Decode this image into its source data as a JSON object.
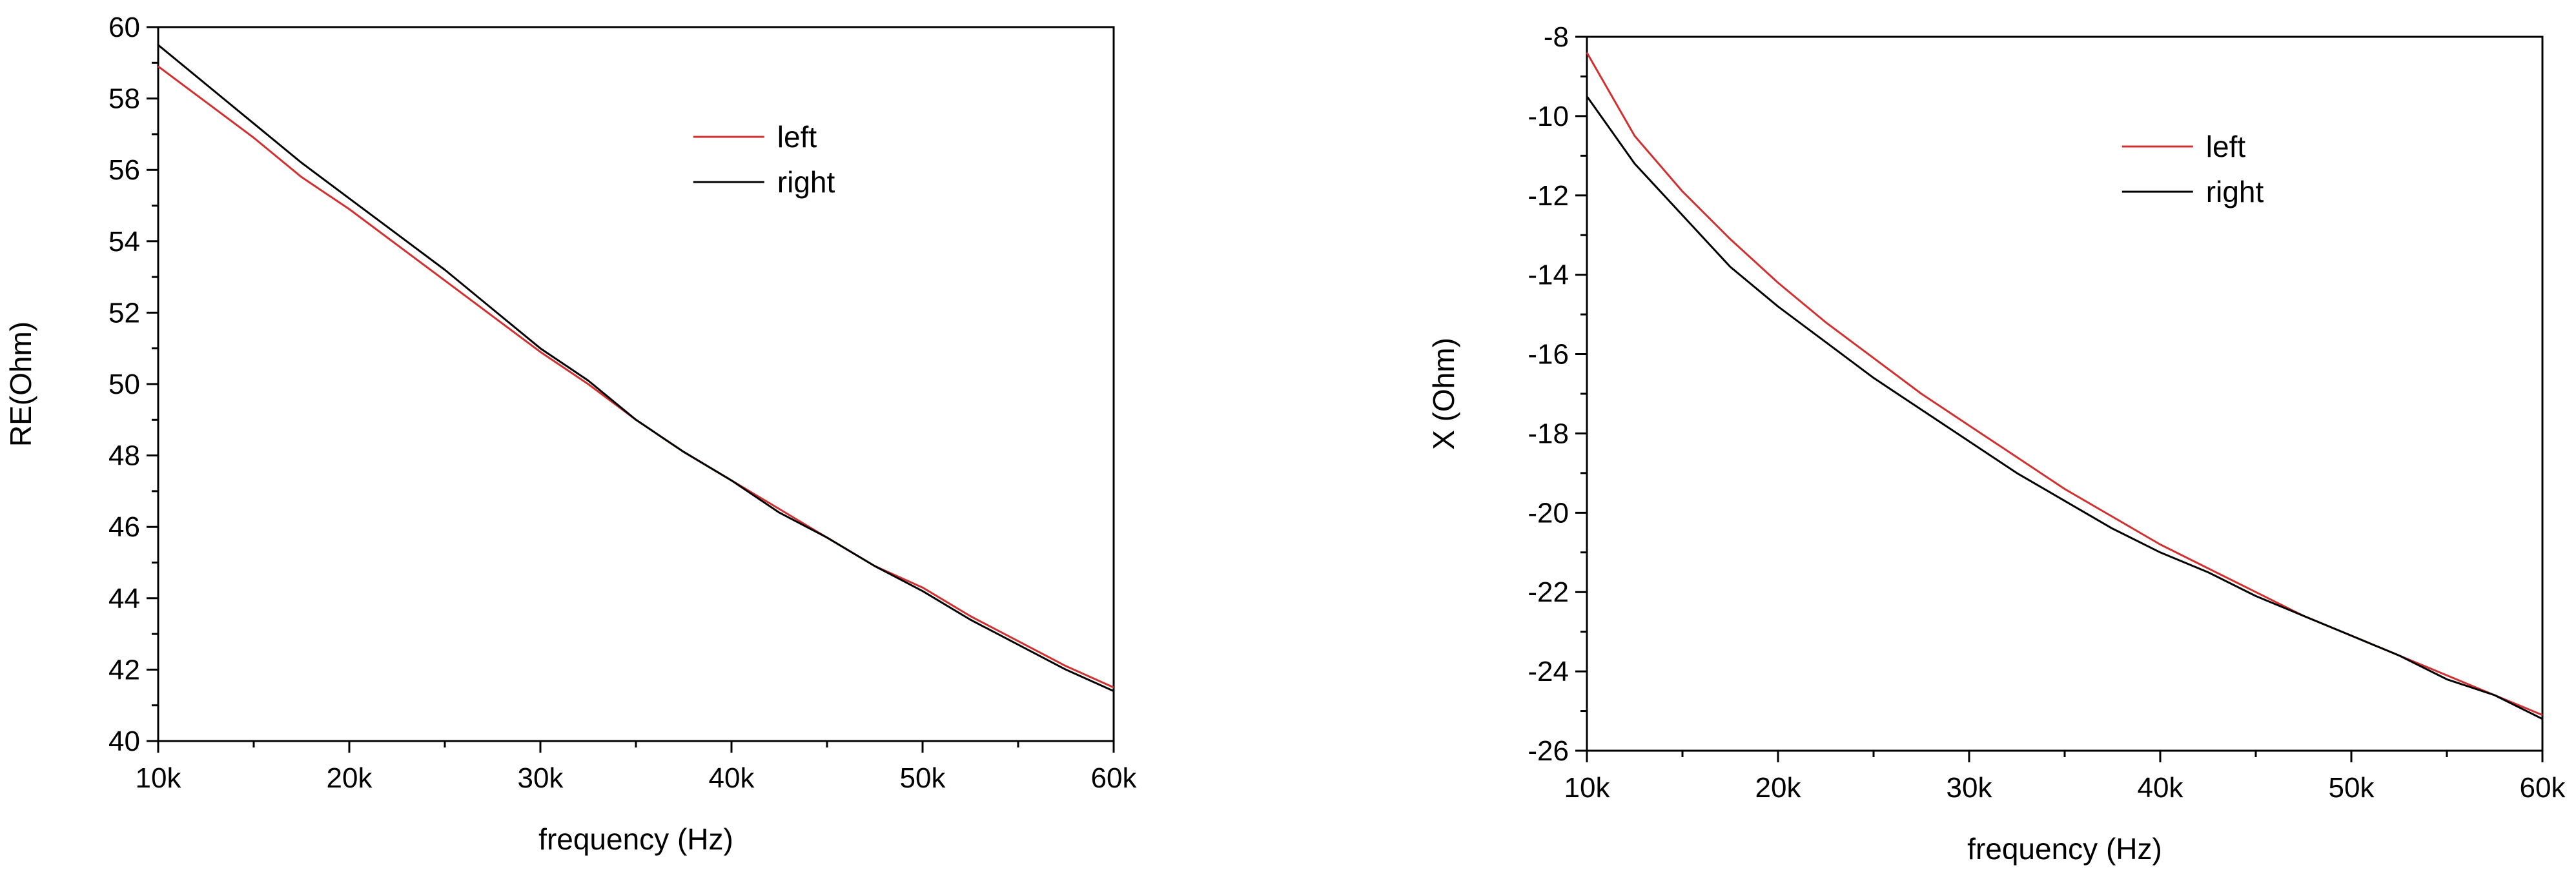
{
  "colors": {
    "left": "#d03030",
    "right": "#000000",
    "axis": "#000000"
  },
  "chart_data": [
    {
      "type": "line",
      "title": "",
      "xlabel": "frequency (Hz)",
      "ylabel": "RE(Ohm)",
      "xlim": [
        10000,
        60000
      ],
      "ylim": [
        40,
        60
      ],
      "x_ticks": [
        10000,
        20000,
        30000,
        40000,
        50000,
        60000
      ],
      "x_tick_labels": [
        "10k",
        "20k",
        "30k",
        "40k",
        "50k",
        "60k"
      ],
      "y_ticks": [
        40,
        42,
        44,
        46,
        48,
        50,
        52,
        54,
        56,
        58,
        60
      ],
      "y_tick_labels": [
        "40",
        "42",
        "44",
        "46",
        "48",
        "50",
        "52",
        "54",
        "56",
        "58",
        "60"
      ],
      "grid": false,
      "legend": "top-right",
      "x": [
        10000,
        12500,
        15000,
        17500,
        20000,
        22500,
        25000,
        27500,
        30000,
        32500,
        35000,
        37500,
        40000,
        42500,
        45000,
        47500,
        50000,
        52500,
        55000,
        57500,
        60000
      ],
      "series": [
        {
          "name": "left",
          "values": [
            58.9,
            57.9,
            56.9,
            55.8,
            54.9,
            53.9,
            52.9,
            51.9,
            50.9,
            50.0,
            49.0,
            48.1,
            47.3,
            46.5,
            45.7,
            44.9,
            44.3,
            43.5,
            42.8,
            42.1,
            41.5
          ]
        },
        {
          "name": "right",
          "values": [
            59.5,
            58.4,
            57.3,
            56.2,
            55.2,
            54.2,
            53.2,
            52.1,
            51.0,
            50.1,
            49.0,
            48.1,
            47.3,
            46.4,
            45.7,
            44.9,
            44.2,
            43.4,
            42.7,
            42.0,
            41.4
          ]
        }
      ]
    },
    {
      "type": "line",
      "title": "",
      "xlabel": "frequency (Hz)",
      "ylabel": "X (Ohm)",
      "xlim": [
        10000,
        60000
      ],
      "ylim": [
        -26,
        -8
      ],
      "x_ticks": [
        10000,
        20000,
        30000,
        40000,
        50000,
        60000
      ],
      "x_tick_labels": [
        "10k",
        "20k",
        "30k",
        "40k",
        "50k",
        "60k"
      ],
      "y_ticks": [
        -26,
        -24,
        -22,
        -20,
        -18,
        -16,
        -14,
        -12,
        -10,
        -8
      ],
      "y_tick_labels": [
        "-26",
        "-24",
        "-22",
        "-20",
        "-18",
        "-16",
        "-14",
        "-12",
        "-10",
        "-8"
      ],
      "grid": false,
      "legend": "top-right",
      "x": [
        10000,
        12500,
        15000,
        17500,
        20000,
        22500,
        25000,
        27500,
        30000,
        32500,
        35000,
        37500,
        40000,
        42500,
        45000,
        47500,
        50000,
        52500,
        55000,
        57500,
        60000
      ],
      "series": [
        {
          "name": "left",
          "values": [
            -8.4,
            -10.5,
            -11.9,
            -13.1,
            -14.2,
            -15.2,
            -16.1,
            -17.0,
            -17.8,
            -18.6,
            -19.4,
            -20.1,
            -20.8,
            -21.4,
            -22.0,
            -22.6,
            -23.1,
            -23.6,
            -24.1,
            -24.6,
            -25.1
          ]
        },
        {
          "name": "right",
          "values": [
            -9.5,
            -11.2,
            -12.5,
            -13.8,
            -14.8,
            -15.7,
            -16.6,
            -17.4,
            -18.2,
            -19.0,
            -19.7,
            -20.4,
            -21.0,
            -21.5,
            -22.1,
            -22.6,
            -23.1,
            -23.6,
            -24.2,
            -24.6,
            -25.2
          ]
        }
      ]
    }
  ]
}
